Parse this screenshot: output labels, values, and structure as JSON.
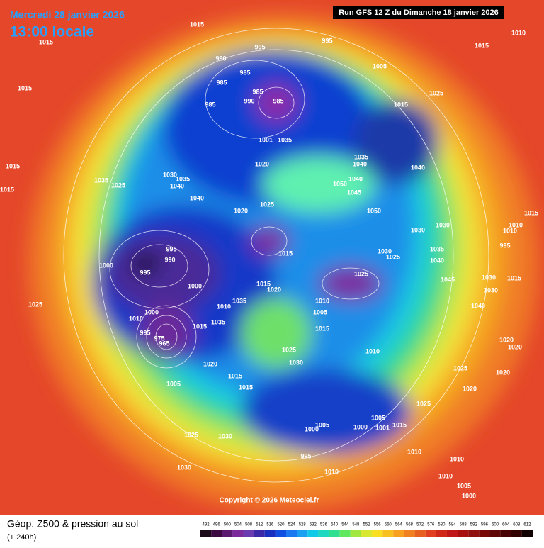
{
  "header": {
    "date": "Mercredi 28 janvier 2026",
    "time": "13:00 locale",
    "run": "Run GFS 12 Z du Dimanche 18 janvier 2026"
  },
  "map": {
    "isobar_labels": [
      1015,
      1015,
      995,
      995,
      990,
      1005,
      1015,
      1010,
      985,
      985,
      985,
      985,
      990,
      985,
      1025,
      1015,
      1015,
      1001,
      1035,
      1020,
      1035,
      1040,
      1040,
      1015,
      1015,
      1035,
      1030,
      1035,
      1040,
      1025,
      1050,
      1040,
      1045,
      1040,
      1025,
      1020,
      1050,
      1030,
      1030,
      995,
      990,
      1000,
      995,
      1015,
      1030,
      1025,
      1035,
      1040,
      995,
      1025,
      1045,
      1030,
      1015,
      1000,
      1015,
      1020,
      1030,
      1025,
      1010,
      1005,
      1035,
      1010,
      1000,
      1010,
      995,
      975,
      965,
      1015,
      1035,
      1015,
      1040,
      1020,
      1020,
      1025,
      1010,
      1030,
      1020,
      1025,
      1020,
      1015,
      1015,
      1005,
      1020,
      1025,
      1005,
      1005,
      1000,
      1000,
      1001,
      1015,
      1025,
      1030,
      1010,
      1030,
      995,
      1010,
      1010,
      1010,
      1005,
      1000,
      1010,
      1015,
      1010
    ]
  },
  "footer": {
    "title": "Géop. Z500 & pression au sol",
    "lead": "(+ 240h)",
    "copyright": "Copyright © 2026 Meteociel.fr",
    "scale": [
      492,
      496,
      500,
      504,
      508,
      512,
      516,
      520,
      524,
      528,
      532,
      536,
      540,
      544,
      548,
      552,
      556,
      560,
      564,
      568,
      572,
      576,
      580,
      584,
      588,
      592,
      596,
      600,
      604,
      608,
      612
    ]
  }
}
